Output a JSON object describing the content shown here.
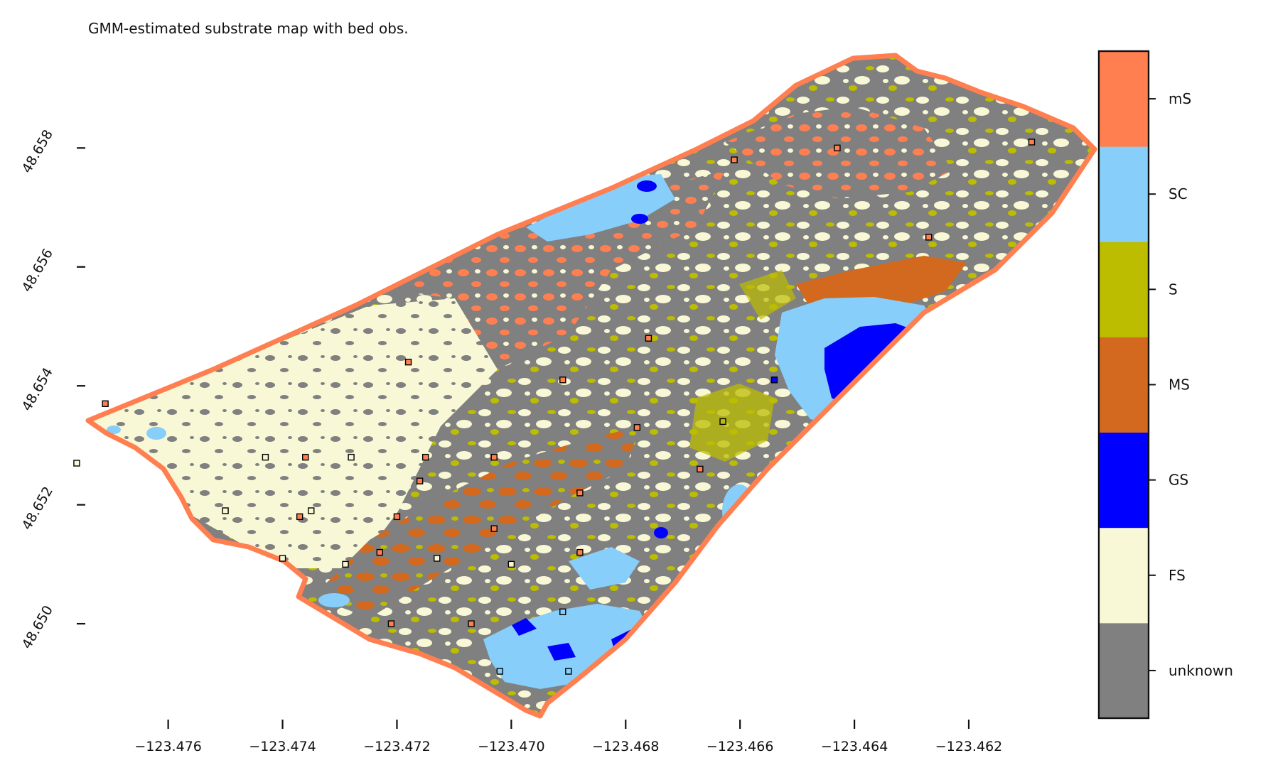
{
  "title": "GMM-estimated substrate map with bed obs.",
  "colors": {
    "unknown": "#808080",
    "FS": "#f8f8d6",
    "GS": "#0000ff",
    "MS": "#d2691e",
    "S": "#bcbc00",
    "SC": "#87cefa",
    "mS": "#ff7f50",
    "outline": "#ff7f50",
    "obs_stroke": "#000000"
  },
  "legend": {
    "labels": [
      "unknown",
      "FS",
      "GS",
      "MS",
      "S",
      "SC",
      "mS"
    ]
  },
  "axes": {
    "x_ticks": [
      "−123.476",
      "−123.474",
      "−123.472",
      "−123.470",
      "−123.468",
      "−123.466",
      "−123.464",
      "−123.462"
    ],
    "x_values": [
      -123.476,
      -123.474,
      -123.472,
      -123.47,
      -123.468,
      -123.466,
      -123.464,
      -123.462
    ],
    "y_ticks": [
      "48.650",
      "48.652",
      "48.654",
      "48.656",
      "48.658"
    ],
    "y_values": [
      48.65,
      48.652,
      48.654,
      48.656,
      48.658
    ],
    "xlim": [
      -123.4774,
      -123.4598
    ],
    "ylim": [
      48.6484,
      48.6597
    ]
  },
  "observations": [
    {
      "lon": -123.4771,
      "lat": 48.6537,
      "cls": "mS"
    },
    {
      "lon": -123.4776,
      "lat": 48.6527,
      "cls": "FS"
    },
    {
      "lon": -123.4743,
      "lat": 48.6528,
      "cls": "FS"
    },
    {
      "lon": -123.4736,
      "lat": 48.6528,
      "cls": "mS"
    },
    {
      "lon": -123.4728,
      "lat": 48.6528,
      "cls": "FS"
    },
    {
      "lon": -123.4715,
      "lat": 48.6528,
      "cls": "mS"
    },
    {
      "lon": -123.4703,
      "lat": 48.6528,
      "cls": "mS"
    },
    {
      "lon": -123.4716,
      "lat": 48.6524,
      "cls": "mS"
    },
    {
      "lon": -123.475,
      "lat": 48.6519,
      "cls": "FS"
    },
    {
      "lon": -123.4735,
      "lat": 48.6519,
      "cls": "FS"
    },
    {
      "lon": -123.4737,
      "lat": 48.6518,
      "cls": "mS"
    },
    {
      "lon": -123.472,
      "lat": 48.6518,
      "cls": "mS"
    },
    {
      "lon": -123.4688,
      "lat": 48.6522,
      "cls": "mS"
    },
    {
      "lon": -123.4703,
      "lat": 48.6516,
      "cls": "mS"
    },
    {
      "lon": -123.474,
      "lat": 48.6511,
      "cls": "FS"
    },
    {
      "lon": -123.4729,
      "lat": 48.651,
      "cls": "FS"
    },
    {
      "lon": -123.4723,
      "lat": 48.6512,
      "cls": "mS"
    },
    {
      "lon": -123.4713,
      "lat": 48.6511,
      "cls": "FS"
    },
    {
      "lon": -123.47,
      "lat": 48.651,
      "cls": "FS"
    },
    {
      "lon": -123.4688,
      "lat": 48.6512,
      "cls": "mS"
    },
    {
      "lon": -123.4721,
      "lat": 48.65,
      "cls": "mS"
    },
    {
      "lon": -123.4707,
      "lat": 48.65,
      "cls": "mS"
    },
    {
      "lon": -123.4691,
      "lat": 48.6502,
      "cls": "SC"
    },
    {
      "lon": -123.4702,
      "lat": 48.6492,
      "cls": "SC"
    },
    {
      "lon": -123.469,
      "lat": 48.6492,
      "cls": "SC"
    },
    {
      "lon": -123.4718,
      "lat": 48.6544,
      "cls": "mS"
    },
    {
      "lon": -123.4691,
      "lat": 48.6541,
      "cls": "mS"
    },
    {
      "lon": -123.4676,
      "lat": 48.6548,
      "cls": "mS"
    },
    {
      "lon": -123.4678,
      "lat": 48.6533,
      "cls": "mS"
    },
    {
      "lon": -123.4663,
      "lat": 48.6534,
      "cls": "S"
    },
    {
      "lon": -123.4667,
      "lat": 48.6526,
      "cls": "mS"
    },
    {
      "lon": -123.4654,
      "lat": 48.6541,
      "cls": "GS"
    },
    {
      "lon": -123.4661,
      "lat": 48.6578,
      "cls": "mS"
    },
    {
      "lon": -123.4643,
      "lat": 48.658,
      "cls": "mS"
    },
    {
      "lon": -123.4627,
      "lat": 48.6565,
      "cls": "mS"
    },
    {
      "lon": -123.4609,
      "lat": 48.6581,
      "cls": "mS"
    }
  ]
}
